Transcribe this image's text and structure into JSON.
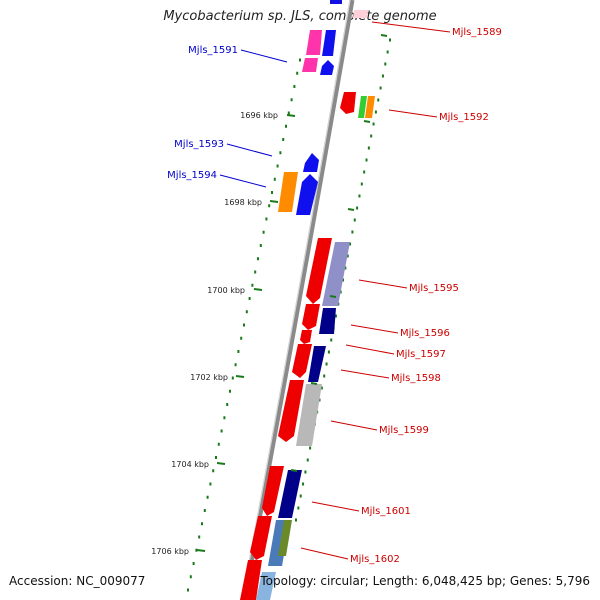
{
  "title": "Mycobacterium sp. JLS, complete genome",
  "accession": "Accession: NC_009077",
  "stats": "Topology: circular; Length: 6,048,425 bp; Genes: 5,796",
  "colors": {
    "backbone": "#8a8a8a",
    "tick": "#1a7a1a",
    "label_plus": "#0000cc",
    "label_minus": "#cc0000"
  },
  "ticks": [
    "1696 kbp",
    "1698 kbp",
    "1700 kbp",
    "1702 kbp",
    "1704 kbp",
    "1706 kbp"
  ],
  "labels_plus": [
    "Mjls_1591",
    "Mjls_1593",
    "Mjls_1594"
  ],
  "labels_minus": [
    "Mjls_1589",
    "Mjls_1592",
    "Mjls_1595",
    "Mjls_1596",
    "Mjls_1597",
    "Mjls_1598",
    "Mjls_1599",
    "Mjls_1601",
    "Mjls_1602"
  ]
}
